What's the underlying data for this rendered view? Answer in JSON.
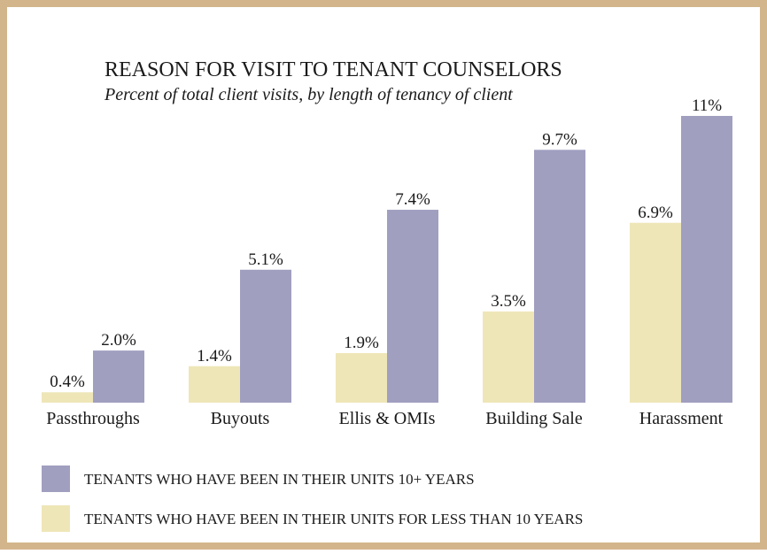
{
  "chart_data": {
    "type": "bar",
    "title": "REASON FOR VISIT TO TENANT COUNSELORS",
    "subtitle": "Percent of total client visits, by length of tenancy of client",
    "categories": [
      "Passthroughs",
      "Buyouts",
      "Ellis & OMIs",
      "Building Sale",
      "Harassment"
    ],
    "series": [
      {
        "name": "TENANTS WHO HAVE BEEN IN THEIR UNITS 10+ YEARS",
        "color": "#a09fc0",
        "values": [
          2.0,
          5.1,
          7.4,
          9.7,
          11
        ],
        "value_labels": [
          "2.0%",
          "5.1%",
          "7.4%",
          "9.7%",
          "11%"
        ]
      },
      {
        "name": "TENANTS WHO HAVE BEEN IN THEIR UNITS FOR LESS THAN 10 YEARS",
        "color": "#efe6b8",
        "values": [
          0.4,
          1.4,
          1.9,
          3.5,
          6.9
        ],
        "value_labels": [
          "0.4%",
          "1.4%",
          "1.9%",
          "3.5%",
          "6.9%"
        ]
      }
    ]
  }
}
